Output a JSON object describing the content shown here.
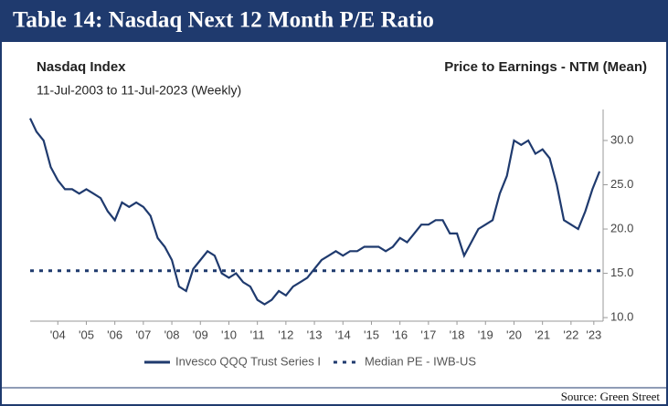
{
  "chart_data": {
    "type": "line",
    "title": "Table 14: Nasdaq Next 12 Month P/E Ratio",
    "subtitle_left": "Nasdaq Index",
    "date_range": "11-Jul-2003 to 11-Jul-2023 (Weekly)",
    "subtitle_right": "Price to Earnings - NTM (Mean)",
    "source": "Source: Green Street",
    "xlim": [
      2003.53,
      2023.53
    ],
    "ylim": [
      9.6,
      33.5
    ],
    "xticks": [
      {
        "value": 2004.5,
        "label": "'04"
      },
      {
        "value": 2005.5,
        "label": "'05"
      },
      {
        "value": 2006.5,
        "label": "'06"
      },
      {
        "value": 2007.5,
        "label": "'07"
      },
      {
        "value": 2008.5,
        "label": "'08"
      },
      {
        "value": 2009.5,
        "label": "'09"
      },
      {
        "value": 2010.5,
        "label": "'10"
      },
      {
        "value": 2011.5,
        "label": "'11"
      },
      {
        "value": 2012.5,
        "label": "'12"
      },
      {
        "value": 2013.5,
        "label": "'13"
      },
      {
        "value": 2014.5,
        "label": "'14"
      },
      {
        "value": 2015.5,
        "label": "'15"
      },
      {
        "value": 2016.5,
        "label": "'16"
      },
      {
        "value": 2017.5,
        "label": "'17"
      },
      {
        "value": 2018.5,
        "label": "'18"
      },
      {
        "value": 2019.5,
        "label": "'19"
      },
      {
        "value": 2020.5,
        "label": "'20"
      },
      {
        "value": 2021.5,
        "label": "'21"
      },
      {
        "value": 2022.5,
        "label": "'22"
      },
      {
        "value": 2023.3,
        "label": "'23"
      }
    ],
    "yticks": [
      {
        "value": 10,
        "label": "10.0"
      },
      {
        "value": 15,
        "label": "15.0"
      },
      {
        "value": 20,
        "label": "20.0"
      },
      {
        "value": 25,
        "label": "25.0"
      },
      {
        "value": 30,
        "label": "30.0"
      }
    ],
    "series": [
      {
        "name": "Invesco QQQ Trust Series I",
        "color": "#1f3a6e",
        "dashed": false,
        "x": [
          2003.53,
          2003.75,
          2004.0,
          2004.25,
          2004.5,
          2004.75,
          2005.0,
          2005.25,
          2005.5,
          2005.75,
          2006.0,
          2006.25,
          2006.5,
          2006.75,
          2007.0,
          2007.25,
          2007.5,
          2007.75,
          2008.0,
          2008.25,
          2008.5,
          2008.75,
          2009.0,
          2009.25,
          2009.5,
          2009.75,
          2010.0,
          2010.25,
          2010.5,
          2010.75,
          2011.0,
          2011.25,
          2011.5,
          2011.75,
          2012.0,
          2012.25,
          2012.5,
          2012.75,
          2013.0,
          2013.25,
          2013.5,
          2013.75,
          2014.0,
          2014.25,
          2014.5,
          2014.75,
          2015.0,
          2015.25,
          2015.5,
          2015.75,
          2016.0,
          2016.25,
          2016.5,
          2016.75,
          2017.0,
          2017.25,
          2017.5,
          2017.75,
          2018.0,
          2018.25,
          2018.5,
          2018.75,
          2019.0,
          2019.25,
          2019.5,
          2019.75,
          2020.0,
          2020.25,
          2020.5,
          2020.75,
          2021.0,
          2021.25,
          2021.5,
          2021.75,
          2022.0,
          2022.25,
          2022.5,
          2022.75,
          2023.0,
          2023.25,
          2023.5
        ],
        "values": [
          32.5,
          31,
          30,
          27,
          25.5,
          24.5,
          24.5,
          24,
          24.5,
          24,
          23.5,
          22,
          21,
          23,
          22.5,
          23,
          22.5,
          21.5,
          19,
          18,
          16.5,
          13.5,
          13,
          15.5,
          16.5,
          17.5,
          17,
          15,
          14.5,
          15,
          14,
          13.5,
          12,
          11.5,
          12,
          13,
          12.5,
          13.5,
          14,
          14.5,
          15.5,
          16.5,
          17,
          17.5,
          17,
          17.5,
          17.5,
          18,
          18,
          18,
          17.5,
          18,
          19,
          18.5,
          19.5,
          20.5,
          20.5,
          21,
          21,
          19.5,
          19.5,
          17,
          18.5,
          20,
          20.5,
          21,
          24,
          26,
          30,
          29.5,
          30,
          28.5,
          29,
          28,
          25,
          21,
          20.5,
          20,
          22,
          24.5,
          26.5
        ]
      },
      {
        "name": "Median PE - IWB-US",
        "color": "#1f3a6e",
        "dashed": true,
        "x": [
          2003.53,
          2023.53
        ],
        "values": [
          15.3,
          15.3
        ]
      }
    ]
  }
}
